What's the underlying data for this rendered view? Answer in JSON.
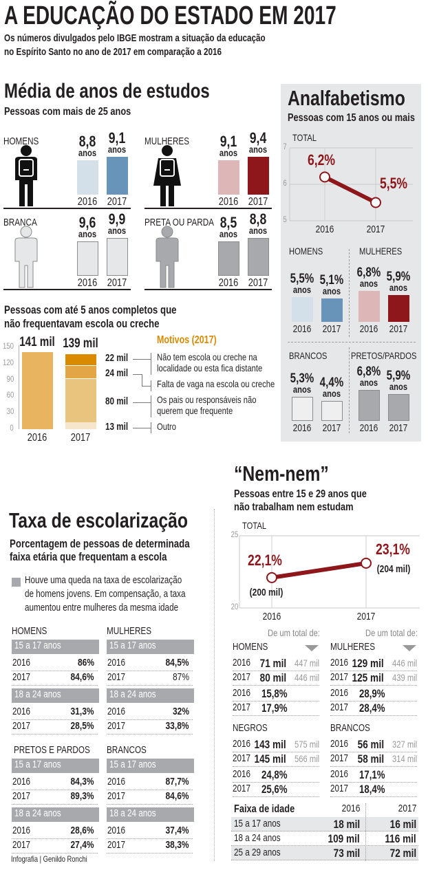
{
  "header": {
    "title": "A EDUCAÇÃO DO ESTADO EM 2017",
    "subtitle_line1": "Os números divulgados pelo IBGE mostram a situação da educação",
    "subtitle_line2": "no Espírito Santo no ano de 2017 em comparação a 2016"
  },
  "media": {
    "title": "Média de anos de estudos",
    "subtitle": "Pessoas com mais de 25 anos",
    "unit": "anos",
    "years": [
      "2016",
      "2017"
    ],
    "groups": [
      {
        "label": "HOMENS",
        "icon": "man-with-backpack-icon",
        "values": [
          "8,8",
          "9,1"
        ],
        "nums": [
          8.8,
          9.1
        ],
        "colors": [
          "#d3e0ea",
          "#6794b8"
        ],
        "figure": "#111111"
      },
      {
        "label": "MULHERES",
        "icon": "woman-with-backpack-icon",
        "values": [
          "9,1",
          "9,4"
        ],
        "nums": [
          9.1,
          9.4
        ],
        "colors": [
          "#ddb6b8",
          "#8e171b"
        ],
        "figure": "#111111"
      },
      {
        "label": "BRANCA",
        "icon": "white-person-icon",
        "values": [
          "9,6",
          "9,9"
        ],
        "nums": [
          9.6,
          9.9
        ],
        "colors": [
          "#e6e7e8",
          "#e6e7e8"
        ],
        "figure": "#e6e7e8"
      },
      {
        "label": "PRETA OU PARDA",
        "icon": "black-brown-person-icon",
        "values": [
          "8,5",
          "8,8"
        ],
        "nums": [
          8.5,
          8.8
        ],
        "colors": [
          "#a7a9ac",
          "#a7a9ac"
        ],
        "figure": "#a7a9ac"
      }
    ]
  },
  "creche": {
    "title_line1": "Pessoas com até 5 anos completos que",
    "title_line2": "não frequentavam escola ou creche",
    "motivos_title": "Motivos (2017)",
    "motivos": [
      {
        "value": "22 mil",
        "line1": "Não tem escola ou creche na",
        "line2": "localidade ou esta fica distante"
      },
      {
        "value": "24 mil",
        "line1": "Falta de vaga na escola ou creche",
        "line2": ""
      },
      {
        "value": "80 mil",
        "line1": "Os pais ou responsáveis não",
        "line2": "querem que frequente"
      },
      {
        "value": "13 mil",
        "line1": "Outro",
        "line2": ""
      }
    ]
  },
  "analf": {
    "title": "Analfabetismo",
    "subtitle": "Pessoas com 15 anos ou mais",
    "total_label": "TOTAL",
    "unit": "anos",
    "years": [
      "2016",
      "2017"
    ],
    "groups": [
      {
        "label": "HOMENS",
        "values": [
          "5,5%",
          "5,1%"
        ],
        "nums": [
          5.5,
          5.1
        ],
        "colors": [
          "#d3e0ea",
          "#6794b8"
        ]
      },
      {
        "label": "MULHERES",
        "values": [
          "6,8%",
          "5,9%"
        ],
        "nums": [
          6.8,
          5.9
        ],
        "colors": [
          "#ddb6b8",
          "#8e171b"
        ]
      },
      {
        "label": "BRANCOS",
        "values": [
          "5,3%",
          "4,4%"
        ],
        "nums": [
          5.3,
          4.4
        ],
        "colors": [
          "#efeff0",
          "#efeff0"
        ]
      },
      {
        "label": "PRETOS/PARDOS",
        "values": [
          "6,8%",
          "5,9%"
        ],
        "nums": [
          6.8,
          5.9
        ],
        "colors": [
          "#a7a9ac",
          "#a7a9ac"
        ]
      }
    ]
  },
  "escolarizacao": {
    "title": "Taxa de escolarização",
    "subtitle_line1": "Porcentagem de pessoas de determinada",
    "subtitle_line2": "faixa etária que frequentam a escola",
    "note_line1": "Houve uma queda na taxa de escolarização",
    "note_line2": "de homens jovens. Em compensação, a taxa",
    "note_line3": "aumentou entre mulheres da mesma idade",
    "groups": [
      {
        "label": "HOMENS",
        "ages": [
          {
            "label": "15 a 17 anos",
            "rows": [
              {
                "year": "2016",
                "value": "86%"
              },
              {
                "year": "2017",
                "value": "84,6%"
              }
            ]
          },
          {
            "label": "18 a 24 anos",
            "rows": [
              {
                "year": "2016",
                "value": "31,3%"
              },
              {
                "year": "2017",
                "value": "28,5%"
              }
            ]
          }
        ]
      },
      {
        "label": "MULHERES",
        "ages": [
          {
            "label": "15 a 17 anos",
            "rows": [
              {
                "year": "2016",
                "value": "84,5%"
              },
              {
                "year": "2017",
                "value": "87%",
                "light": true
              }
            ]
          },
          {
            "label": "18 a 24 anos",
            "rows": [
              {
                "year": "2016",
                "value": "32%"
              },
              {
                "year": "2017",
                "value": "33,8%"
              }
            ]
          }
        ]
      },
      {
        "label": "PRETOS E PARDOS",
        "ages": [
          {
            "label": "15 a 17 anos",
            "rows": [
              {
                "year": "2016",
                "value": "84,3%"
              },
              {
                "year": "2017",
                "value": "89,3%"
              }
            ]
          },
          {
            "label": "18 a 24 anos",
            "rows": [
              {
                "year": "2016",
                "value": "28,6%"
              },
              {
                "year": "2017",
                "value": "27,4%"
              }
            ]
          }
        ]
      },
      {
        "label": "BRANCOS",
        "ages": [
          {
            "label": "15 a 17 anos",
            "rows": [
              {
                "year": "2016",
                "value": "87,7%"
              },
              {
                "year": "2017",
                "value": "84,6%"
              }
            ]
          },
          {
            "label": "18 a 24 anos",
            "rows": [
              {
                "year": "2016",
                "value": "37,4%"
              },
              {
                "year": "2017",
                "value": "38,3%"
              }
            ]
          }
        ]
      }
    ]
  },
  "nemnem": {
    "title": "“Nem-nem”",
    "subtitle_line1": "Pessoas entre 15 e 29 anos que",
    "subtitle_line2": "não trabalham  nem estudam",
    "total_label": "TOTAL",
    "total_of": "De um total de:",
    "groups": [
      {
        "label": "HOMENS",
        "rows": [
          {
            "year": "2016",
            "value": "71 mil",
            "total": "447 mil"
          },
          {
            "year": "2017",
            "value": "80 mil",
            "total": "446 mil"
          }
        ],
        "pct": [
          {
            "year": "2016",
            "value": "15,8%"
          },
          {
            "year": "2017",
            "value": "17,9%"
          }
        ]
      },
      {
        "label": "MULHERES",
        "rows": [
          {
            "year": "2016",
            "value": "129 mil",
            "total": "446 mil"
          },
          {
            "year": "2017",
            "value": "125 mil",
            "total": "439 mil"
          }
        ],
        "pct": [
          {
            "year": "2016",
            "value": "28,9%"
          },
          {
            "year": "2017",
            "value": "28,4%"
          }
        ]
      },
      {
        "label": "NEGROS",
        "rows": [
          {
            "year": "2016",
            "value": "143 mil",
            "total": "575 mil"
          },
          {
            "year": "2017",
            "value": "145 mil",
            "total": "566 mil"
          }
        ],
        "pct": [
          {
            "year": "2016",
            "value": "24,8%"
          },
          {
            "year": "2017",
            "value": "25,6%"
          }
        ]
      },
      {
        "label": "BRANCOS",
        "rows": [
          {
            "year": "2016",
            "value": "56 mil",
            "total": "327 mil"
          },
          {
            "year": "2017",
            "value": "58 mil",
            "total": "314 mil"
          }
        ],
        "pct": [
          {
            "year": "2016",
            "value": "17,1%"
          },
          {
            "year": "2017",
            "value": "18,4%"
          }
        ]
      }
    ],
    "age_table": {
      "headers": [
        "Faixa de idade",
        "2016",
        "2017"
      ],
      "rows": [
        [
          "15 a 17 anos",
          "18 mil",
          "16 mil"
        ],
        [
          "18 a 24 anos",
          "109 mil",
          "116 mil"
        ],
        [
          "25 a 29 anos",
          "73 mil",
          "72 mil"
        ]
      ]
    }
  },
  "credit": "Infografia | Genildo Ronchi",
  "colors": {
    "accent_red": "#8e171b",
    "orange": "#d98a00",
    "panel_gray": "#e6e7e8",
    "header_gray": "#a7a9ac"
  },
  "chart_data": [
    {
      "type": "line",
      "title": "Analfabetismo — TOTAL",
      "x": [
        "2016",
        "2017"
      ],
      "y": [
        6.2,
        5.5
      ],
      "labels": [
        "6,2%",
        "5,5%"
      ],
      "ylim": [
        5,
        7
      ],
      "yticks": [
        "5",
        "6",
        "7"
      ],
      "grid": true
    },
    {
      "type": "line",
      "title": "Nem-nem — TOTAL",
      "x": [
        "2016",
        "2017"
      ],
      "y": [
        22.1,
        23.1
      ],
      "labels": [
        "22,1%",
        "23,1%"
      ],
      "sublabels": [
        "(200 mil)",
        "(204 mil)"
      ],
      "ylim": [
        20,
        25
      ],
      "yticks": [
        "20",
        "25"
      ],
      "grid": true
    },
    {
      "type": "bar",
      "stacked": true,
      "title": "Pessoas com até 5 anos completos que não frequentavam escola ou creche",
      "categories": [
        "2016",
        "2017"
      ],
      "totals": [
        141,
        139
      ],
      "total_labels": [
        "141 mil",
        "139 mil"
      ],
      "series": [
        {
          "name": "Total 2016",
          "values": [
            141,
            0
          ],
          "color": "#e8b460"
        },
        {
          "name": "Outro",
          "values": [
            0,
            13
          ],
          "color": "#f6e6cb"
        },
        {
          "name": "Os pais ou responsáveis não querem que frequente",
          "values": [
            0,
            80
          ],
          "color": "#e9c47f"
        },
        {
          "name": "Falta de vaga na escola ou creche",
          "values": [
            0,
            24
          ],
          "color": "#e3a646"
        },
        {
          "name": "Não tem escola ou creche na localidade ou esta fica distante",
          "values": [
            0,
            22
          ],
          "color": "#d98a00"
        }
      ],
      "ylim": [
        0,
        150
      ],
      "yticks": [
        "0",
        "30",
        "60",
        "90",
        "120",
        "150"
      ]
    }
  ]
}
